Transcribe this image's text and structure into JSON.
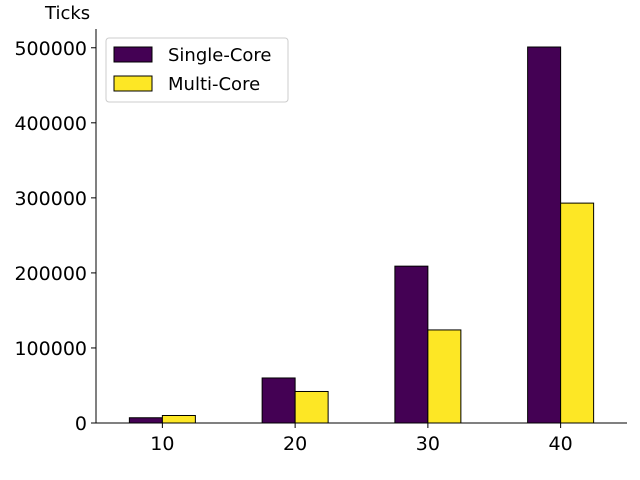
{
  "chart_data": {
    "type": "bar",
    "title": "",
    "xlabel": "",
    "ylabel": "Ticks",
    "categories": [
      "10",
      "20",
      "30",
      "40"
    ],
    "series": [
      {
        "name": "Single-Core",
        "color": "#440154",
        "values": [
          7000,
          60000,
          209000,
          501000
        ]
      },
      {
        "name": "Multi-Core",
        "color": "#fde725",
        "values": [
          10000,
          42000,
          124000,
          293000
        ]
      }
    ],
    "ylim": [
      0,
      525000
    ],
    "yticks": [
      0,
      100000,
      200000,
      300000,
      400000,
      500000
    ],
    "ytick_labels": [
      "0",
      "100000",
      "200000",
      "300000",
      "400000",
      "500000"
    ],
    "grid": false,
    "legend_position": "top-left"
  }
}
